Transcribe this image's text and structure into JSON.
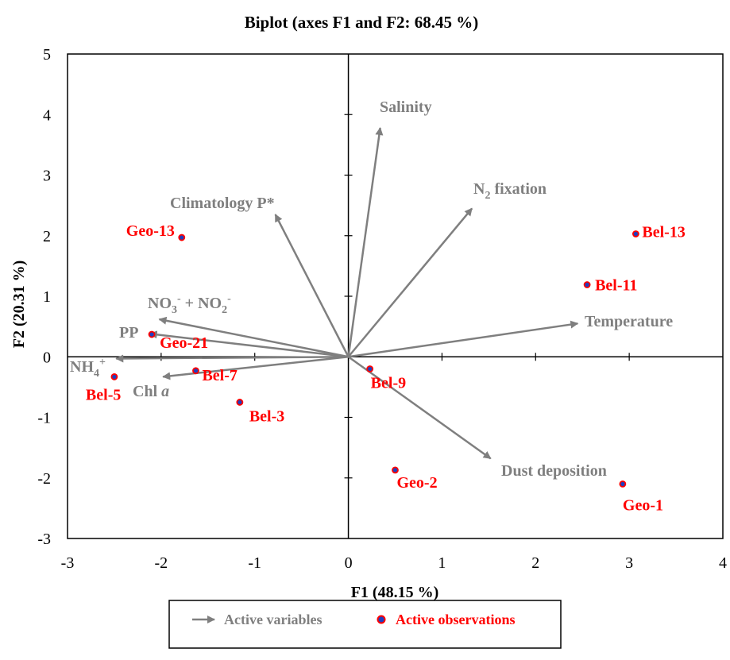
{
  "chart_data": {
    "type": "scatter",
    "title": "Biplot (axes F1 and F2: 68.45 %)",
    "xlabel": "F1 (48.15 %)",
    "ylabel": "F2 (20.31 %)",
    "xlim": [
      -3,
      4
    ],
    "ylim": [
      -3,
      5
    ],
    "x_ticks": [
      "-3",
      "-2",
      "-1",
      "0",
      "1",
      "2",
      "3",
      "4"
    ],
    "y_ticks": [
      "-3",
      "-2",
      "-1",
      "0",
      "1",
      "2",
      "3",
      "4",
      "5"
    ],
    "grid": false,
    "legend_placement": "bottom",
    "legend": {
      "variables": "Active variables",
      "observations": "Active observations"
    },
    "colors": {
      "variables": "#7f7f7f",
      "observation_label": "#ff0000",
      "observation_marker_fill": "#1f3fbf",
      "observation_marker_edge": "#ff0000"
    },
    "variables": [
      {
        "name": "Salinity",
        "x": 0.34,
        "y": 3.78
      },
      {
        "name": "N2 fixation",
        "x": 1.32,
        "y": 2.45
      },
      {
        "name": "Climatology P*",
        "x": -0.78,
        "y": 2.35
      },
      {
        "name": "NO3- + NO2-",
        "x": -2.02,
        "y": 0.62
      },
      {
        "name": "PP",
        "x": -2.12,
        "y": 0.38
      },
      {
        "name": "NH4+",
        "x": -2.48,
        "y": -0.03
      },
      {
        "name": "Chl a",
        "x": -1.98,
        "y": -0.33
      },
      {
        "name": "Temperature",
        "x": 2.45,
        "y": 0.55
      },
      {
        "name": "Dust deposition",
        "x": 1.52,
        "y": -1.68
      }
    ],
    "observations": [
      {
        "name": "Geo-13",
        "x": -1.78,
        "y": 1.97
      },
      {
        "name": "Geo-21",
        "x": -2.1,
        "y": 0.37
      },
      {
        "name": "Bel-7",
        "x": -1.63,
        "y": -0.23
      },
      {
        "name": "Bel-5",
        "x": -2.5,
        "y": -0.33
      },
      {
        "name": "Bel-3",
        "x": -1.16,
        "y": -0.75
      },
      {
        "name": "Bel-9",
        "x": 0.23,
        "y": -0.2
      },
      {
        "name": "Geo-2",
        "x": 0.5,
        "y": -1.87
      },
      {
        "name": "Geo-1",
        "x": 2.93,
        "y": -2.1
      },
      {
        "name": "Bel-11",
        "x": 2.55,
        "y": 1.19
      },
      {
        "name": "Bel-13",
        "x": 3.07,
        "y": 2.03
      }
    ]
  }
}
